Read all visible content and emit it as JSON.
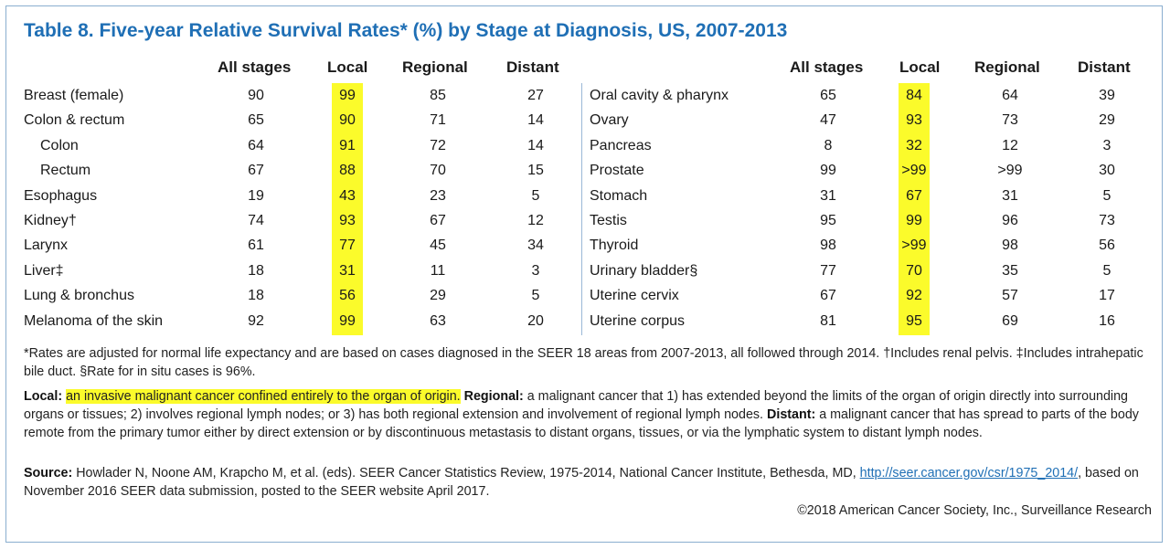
{
  "title": "Table 8. Five-year Relative Survival Rates* (%) by Stage at Diagnosis, US, 2007-2013",
  "headers": [
    "All stages",
    "Local",
    "Regional",
    "Distant"
  ],
  "highlight_color": "#fbfb2b",
  "title_color": "#1f6fb5",
  "left_rows": [
    {
      "name": "Breast (female)",
      "indent": false,
      "all": "90",
      "local": "99",
      "regional": "85",
      "distant": "27"
    },
    {
      "name": "Colon & rectum",
      "indent": false,
      "all": "65",
      "local": "90",
      "regional": "71",
      "distant": "14"
    },
    {
      "name": "Colon",
      "indent": true,
      "all": "64",
      "local": "91",
      "regional": "72",
      "distant": "14"
    },
    {
      "name": "Rectum",
      "indent": true,
      "all": "67",
      "local": "88",
      "regional": "70",
      "distant": "15"
    },
    {
      "name": "Esophagus",
      "indent": false,
      "all": "19",
      "local": "43",
      "regional": "23",
      "distant": "5"
    },
    {
      "name": "Kidney†",
      "indent": false,
      "all": "74",
      "local": "93",
      "regional": "67",
      "distant": "12"
    },
    {
      "name": "Larynx",
      "indent": false,
      "all": "61",
      "local": "77",
      "regional": "45",
      "distant": "34"
    },
    {
      "name": "Liver‡",
      "indent": false,
      "all": "18",
      "local": "31",
      "regional": "11",
      "distant": "3"
    },
    {
      "name": "Lung & bronchus",
      "indent": false,
      "all": "18",
      "local": "56",
      "regional": "29",
      "distant": "5"
    },
    {
      "name": "Melanoma of the skin",
      "indent": false,
      "all": "92",
      "local": "99",
      "regional": "63",
      "distant": "20"
    }
  ],
  "right_rows": [
    {
      "name": "Oral cavity & pharynx",
      "indent": false,
      "all": "65",
      "local": "84",
      "regional": "64",
      "distant": "39"
    },
    {
      "name": "Ovary",
      "indent": false,
      "all": "47",
      "local": "93",
      "regional": "73",
      "distant": "29"
    },
    {
      "name": "Pancreas",
      "indent": false,
      "all": "8",
      "local": "32",
      "regional": "12",
      "distant": "3"
    },
    {
      "name": "Prostate",
      "indent": false,
      "all": "99",
      "local": ">99",
      "regional": ">99",
      "distant": "30"
    },
    {
      "name": "Stomach",
      "indent": false,
      "all": "31",
      "local": "67",
      "regional": "31",
      "distant": "5"
    },
    {
      "name": "Testis",
      "indent": false,
      "all": "95",
      "local": "99",
      "regional": "96",
      "distant": "73"
    },
    {
      "name": "Thyroid",
      "indent": false,
      "all": "98",
      "local": ">99",
      "regional": "98",
      "distant": "56"
    },
    {
      "name": "Urinary bladder§",
      "indent": false,
      "all": "77",
      "local": "70",
      "regional": "35",
      "distant": "5"
    },
    {
      "name": "Uterine cervix",
      "indent": false,
      "all": "67",
      "local": "92",
      "regional": "57",
      "distant": "17"
    },
    {
      "name": "Uterine corpus",
      "indent": false,
      "all": "81",
      "local": "95",
      "regional": "69",
      "distant": "16"
    }
  ],
  "footnote": "*Rates are adjusted for normal life expectancy and are based on cases diagnosed in the SEER 18 areas from 2007-2013, all followed through 2014. †Includes renal pelvis. ‡Includes intrahepatic bile duct. §Rate for in situ cases is 96%.",
  "definitions": {
    "local_label": "Local:",
    "local_text": "an invasive malignant cancer confined entirely to the organ of origin.",
    "regional_label": "Regional:",
    "regional_text": "a malignant cancer that 1) has extended beyond the limits of the organ of origin directly into surrounding organs or tissues; 2) involves regional lymph nodes; or 3) has both regional extension and involvement of regional lymph nodes.",
    "distant_label": "Distant:",
    "distant_text": "a malignant cancer that has spread to parts of the body remote from the primary tumor either by direct extension or by discontinuous metastasis to distant organs, tissues, or via the lymphatic system to distant lymph nodes."
  },
  "source": {
    "label": "Source:",
    "text": "Howlader N, Noone AM, Krapcho M, et al. (eds). SEER Cancer Statistics Review, 1975-2014, National Cancer Institute, Bethesda, MD,",
    "link": "http://seer.cancer.gov/csr/1975_2014/",
    "text_after": ", based on November 2016 SEER data submission, posted to the SEER website April 2017."
  },
  "copyright": "©2018 American Cancer Society, Inc., Surveillance Research"
}
